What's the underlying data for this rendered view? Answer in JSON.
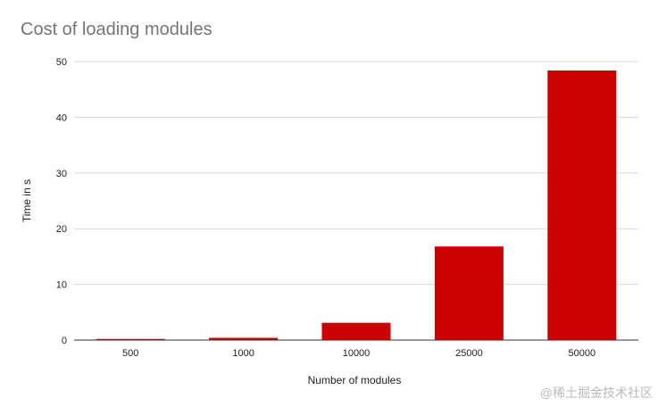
{
  "chart_data": {
    "type": "bar",
    "title": "Cost of loading modules",
    "xlabel": "Number of modules",
    "ylabel": "Time in s",
    "categories": [
      "500",
      "1000",
      "10000",
      "25000",
      "50000"
    ],
    "values": [
      0.2,
      0.4,
      3.1,
      16.8,
      48.4
    ],
    "ylim": [
      0,
      50
    ],
    "yticks": [
      0,
      10,
      20,
      30,
      40,
      50
    ],
    "grid": true,
    "legend": "none",
    "bar_color": "#cc0000",
    "grid_color": "#d9d9d9",
    "axis_color": "#333333"
  },
  "watermark": "@稀土掘金技术社区"
}
